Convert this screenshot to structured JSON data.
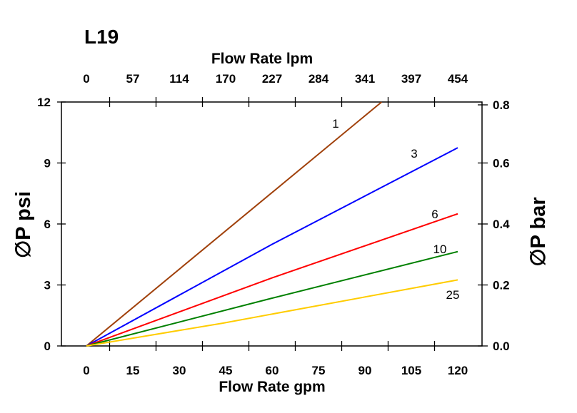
{
  "title": "L19",
  "chart_data": {
    "type": "line",
    "xlabel": "Flow Rate gpm",
    "x2label": "Flow Rate lpm",
    "ylabel": "∅P psi",
    "y2label": "∅P bar",
    "xlim": [
      -7.5,
      127.5
    ],
    "ylim": [
      0,
      12
    ],
    "y2lim": [
      0,
      0.8
    ],
    "xticks": [
      0,
      15,
      30,
      45,
      60,
      75,
      90,
      105,
      120
    ],
    "x2ticks": [
      "0",
      "57",
      "114",
      "170",
      "227",
      "284",
      "341",
      "397",
      "454"
    ],
    "yticks": [
      0,
      3,
      6,
      9,
      12
    ],
    "y2ticks": [
      "0.0",
      "0.2",
      "0.4",
      "0.6",
      "0.8"
    ],
    "grid": false,
    "series": [
      {
        "name": "1",
        "color": "#a0400a",
        "x": [
          0,
          95.4
        ],
        "y": [
          0,
          12
        ]
      },
      {
        "name": "3",
        "color": "#0000ff",
        "x": [
          0,
          60,
          120
        ],
        "y": [
          0,
          5.0,
          9.75
        ]
      },
      {
        "name": "6",
        "color": "#ff0000",
        "x": [
          0,
          60,
          120
        ],
        "y": [
          0,
          3.35,
          6.5
        ]
      },
      {
        "name": "10",
        "color": "#008000",
        "x": [
          0,
          60,
          120
        ],
        "y": [
          0,
          2.35,
          4.64
        ]
      },
      {
        "name": "25",
        "color": "#ffcc00",
        "x": [
          0,
          44,
          120
        ],
        "y": [
          0,
          1.12,
          3.25
        ]
      }
    ]
  }
}
